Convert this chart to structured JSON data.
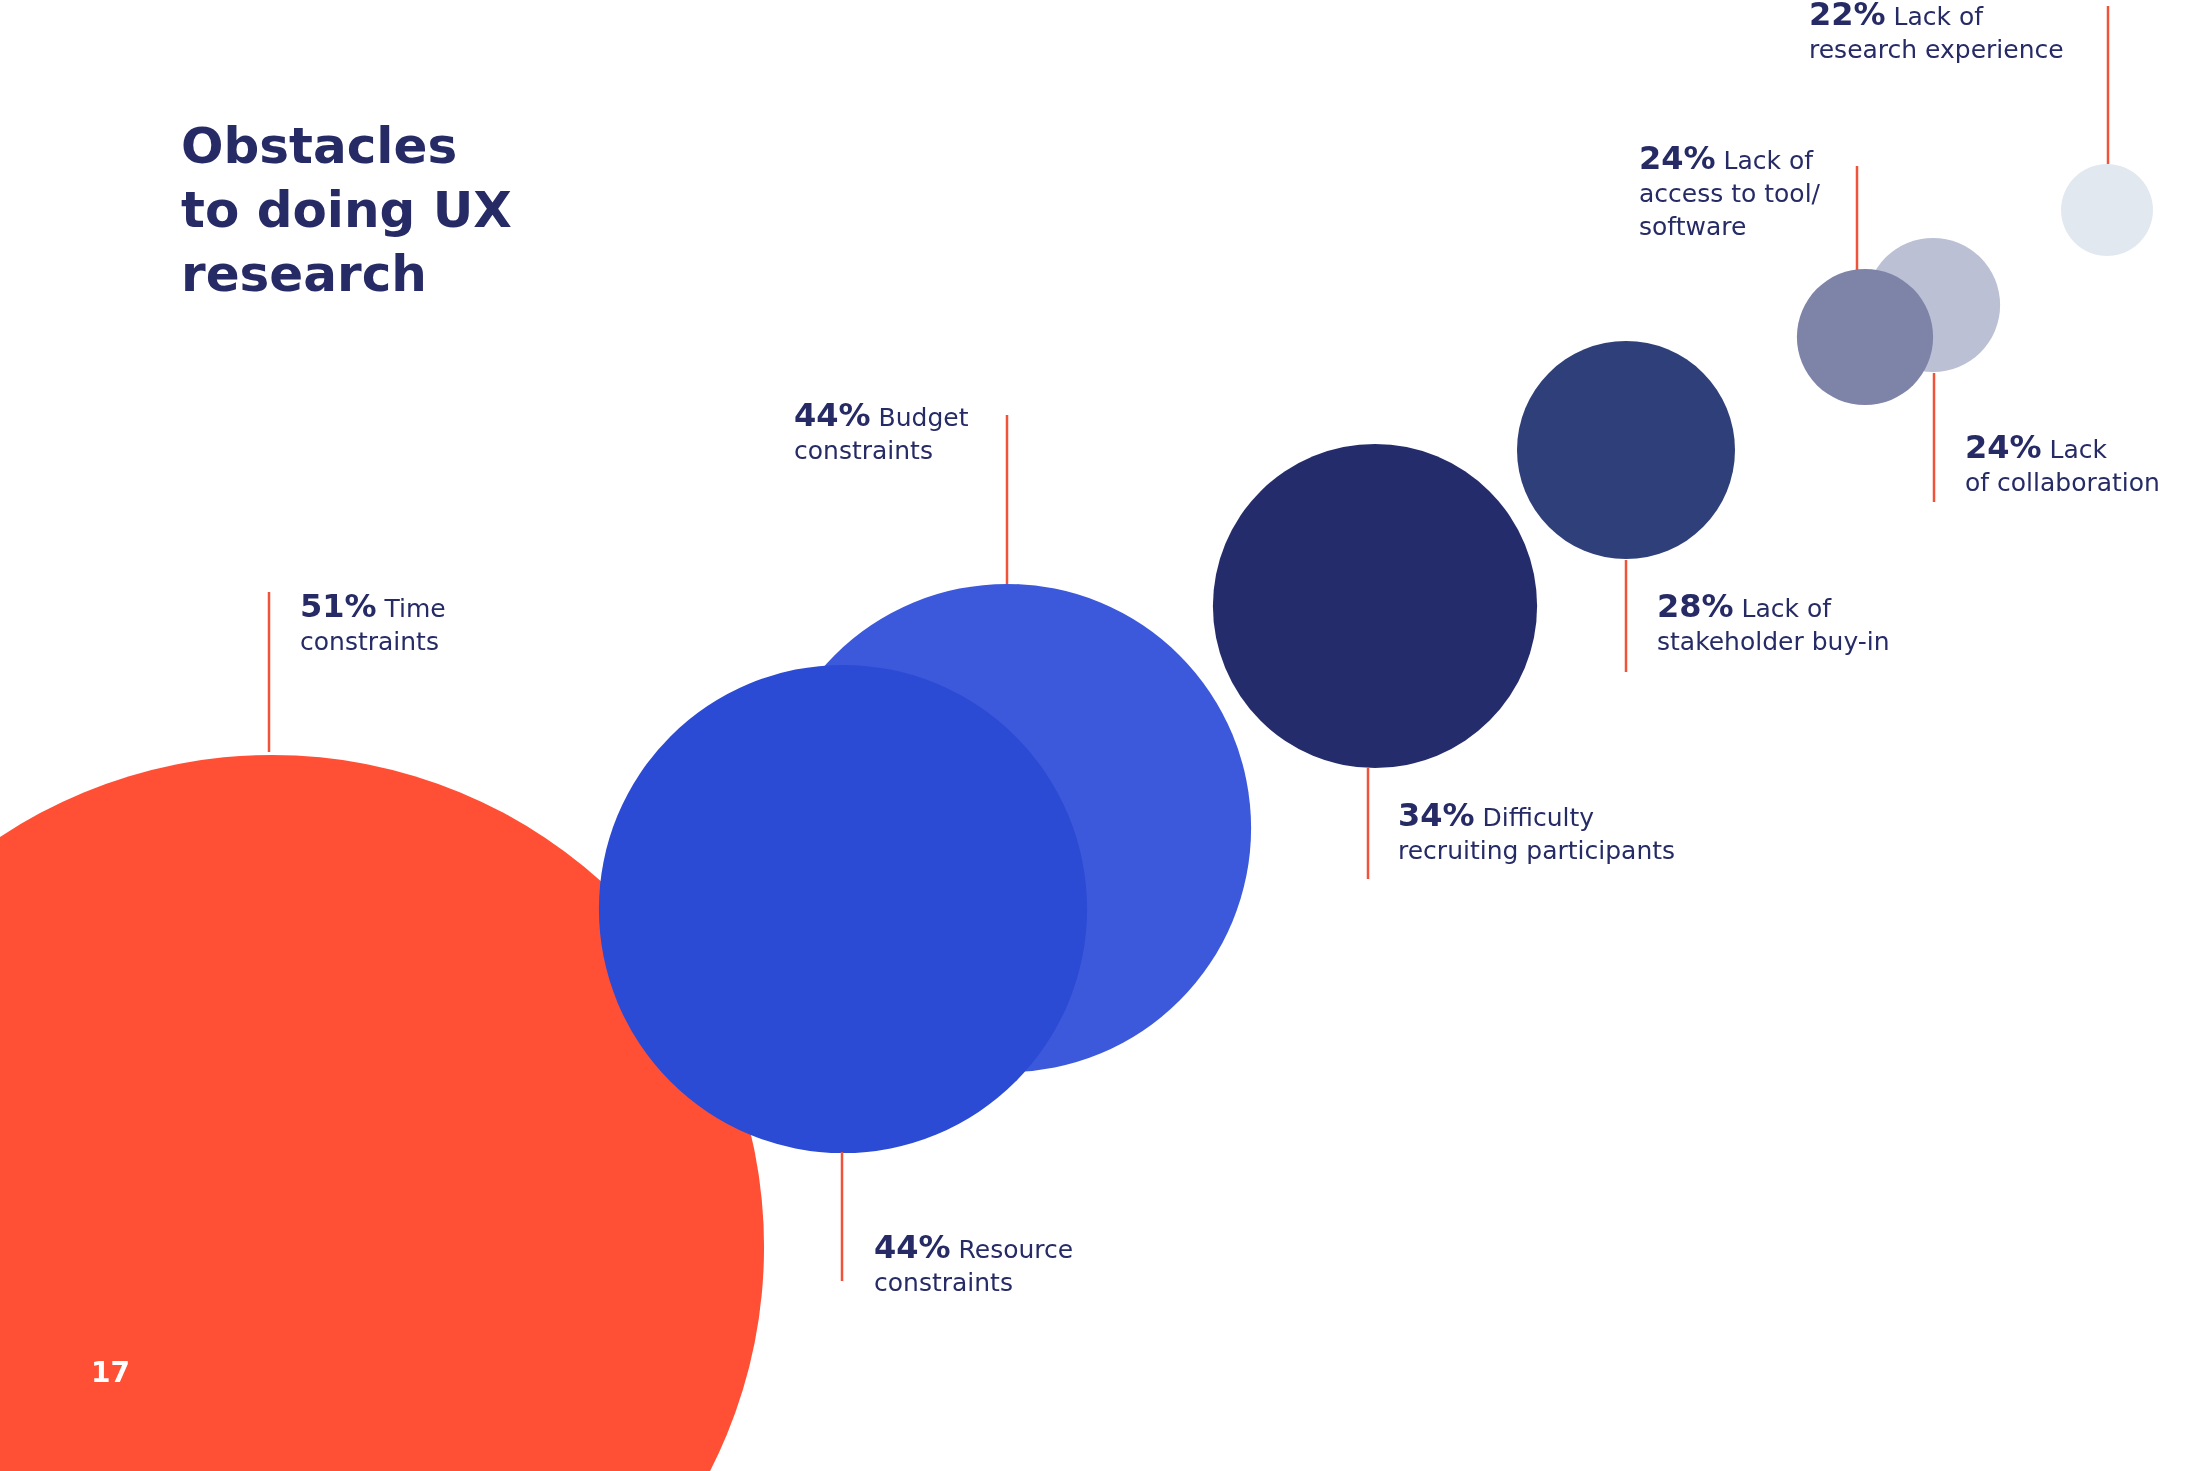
{
  "chart_data": {
    "type": "other",
    "title": "Obstacles\nto doing UX\nresearch",
    "categories": [
      "Time\nconstraints",
      "Budget\nconstraints",
      "Resource\nconstraints",
      "Difficulty\nrecruiting participants",
      "Lack of\nstakeholder buy-in",
      "Lack of\naccess to tool/\nsoftware",
      "Lack\nof collaboration",
      "Lack of\nresearch experience"
    ],
    "values": [
      51,
      44,
      44,
      34,
      28,
      24,
      24,
      22
    ],
    "value_labels": [
      "51%",
      "44%",
      "44%",
      "34%",
      "28%",
      "24%",
      "24%",
      "22%"
    ],
    "colors": [
      "#ff5035",
      "#3c59dc",
      "#2c4bd4",
      "#242c6b",
      "#2f3f7a",
      "#7e83a8",
      "#bcc0d5",
      "#e1e8f0"
    ],
    "annotations": [
      "17"
    ]
  }
}
